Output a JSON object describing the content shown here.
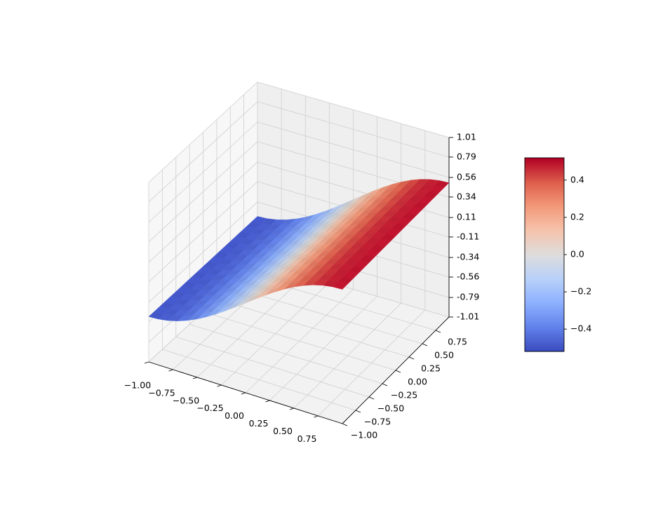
{
  "chart_data": {
    "type": "surface3d",
    "title": "",
    "xlabel": "",
    "ylabel": "",
    "zlabel": "",
    "x_ticks": [
      "−1.00",
      "−0.75",
      "−0.50",
      "−0.25",
      "0.00",
      "0.25",
      "0.50",
      "0.75"
    ],
    "y_ticks": [
      "−1.00",
      "−0.75",
      "−0.50",
      "−0.25",
      "0.00",
      "0.25",
      "0.50",
      "0.75"
    ],
    "z_ticks": [
      "-1.01",
      "-0.79",
      "-0.56",
      "-0.34",
      "-0.11",
      "0.11",
      "0.34",
      "0.56",
      "0.79",
      "1.01"
    ],
    "x_range": [
      -1.0,
      1.0
    ],
    "y_range": [
      -1.0,
      1.0
    ],
    "z_range": [
      -1.01,
      1.01
    ],
    "surface": {
      "function": "0.5 * sin(1.57 * x)",
      "x": [
        -1.0,
        -0.9,
        -0.8,
        -0.7,
        -0.6,
        -0.5,
        -0.4,
        -0.3,
        -0.2,
        -0.1,
        0.0,
        0.1,
        0.2,
        0.3,
        0.4,
        0.5,
        0.6,
        0.7,
        0.8,
        0.9,
        1.0
      ],
      "y": [
        -1.0,
        -0.9,
        -0.8,
        -0.7,
        -0.6,
        -0.5,
        -0.4,
        -0.3,
        -0.2,
        -0.1,
        0.0,
        0.1,
        0.2,
        0.3,
        0.4,
        0.5,
        0.6,
        0.7,
        0.8,
        0.9,
        1.0
      ],
      "z_of_x": [
        -0.5,
        -0.494,
        -0.476,
        -0.446,
        -0.405,
        -0.354,
        -0.294,
        -0.227,
        -0.155,
        -0.078,
        0.0,
        0.078,
        0.155,
        0.227,
        0.294,
        0.354,
        0.405,
        0.446,
        0.476,
        0.494,
        0.5
      ]
    },
    "colormap": "coolwarm",
    "colorbar": {
      "range": [
        -0.52,
        0.52
      ],
      "ticks": [
        -0.4,
        -0.2,
        0.0,
        0.2,
        0.4
      ],
      "tick_labels": [
        "−0.4",
        "−0.2",
        "0.0",
        "0.2",
        "0.4"
      ]
    },
    "grid": true,
    "pane_color": "#f2f2f2"
  }
}
